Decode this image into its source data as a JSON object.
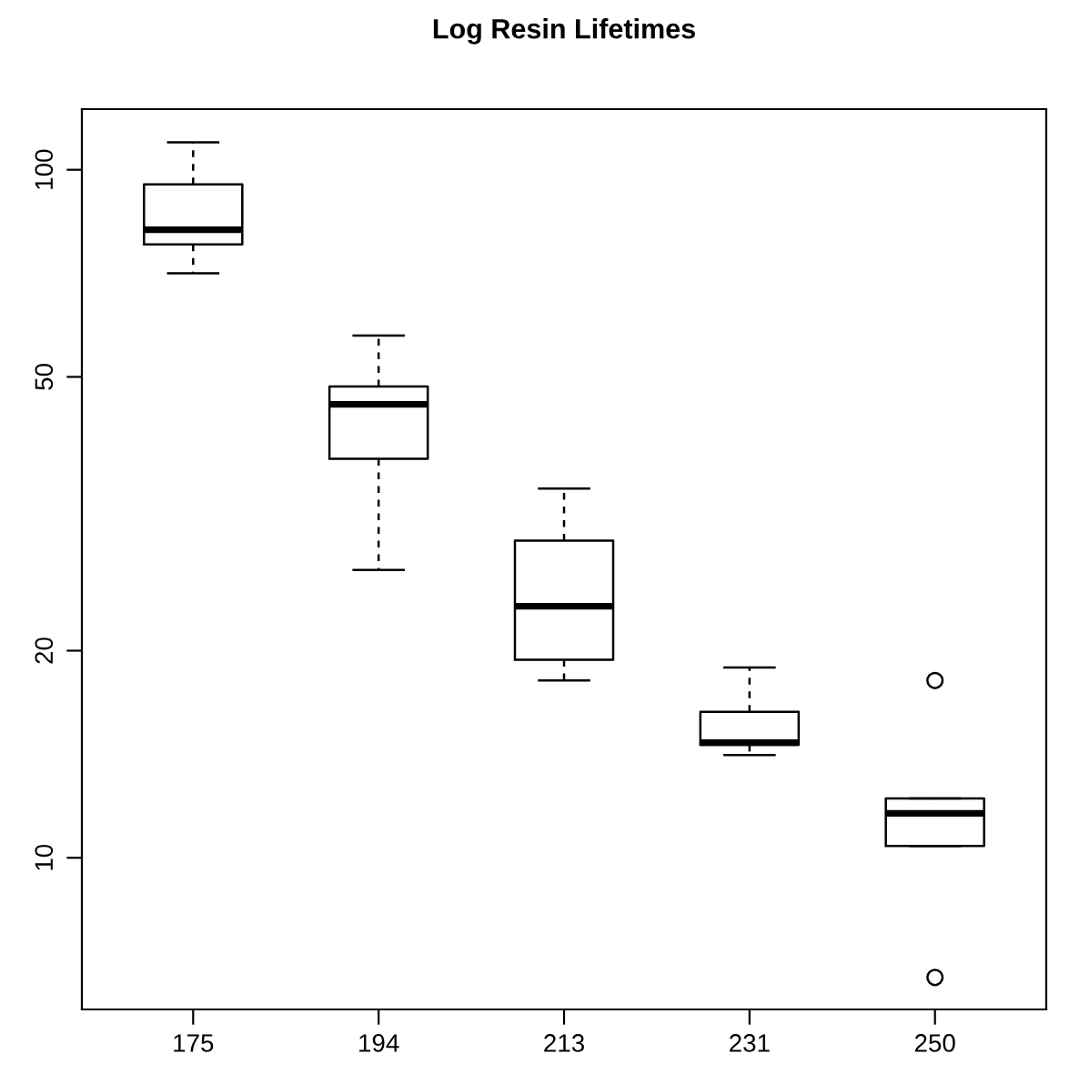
{
  "chart_data": {
    "type": "box",
    "title": "Log Resin Lifetimes",
    "categories": [
      "175",
      "194",
      "213",
      "231",
      "250"
    ],
    "boxes": [
      {
        "low": 70.7,
        "q1": 77.9,
        "median": 81.8,
        "q3": 95.2,
        "high": 109.6
      },
      {
        "low": 26.2,
        "q1": 38.0,
        "median": 45.6,
        "q3": 48.4,
        "high": 57.4
      },
      {
        "low": 18.1,
        "q1": 19.4,
        "median": 23.2,
        "q3": 28.9,
        "high": 34.4
      },
      {
        "low": 14.1,
        "q1": 14.6,
        "median": 14.7,
        "q3": 16.3,
        "high": 18.9
      },
      {
        "low": 10.4,
        "q1": 10.4,
        "median": 11.6,
        "q3": 12.2,
        "high": 12.2,
        "outliers": [
          18.1,
          6.7
        ]
      }
    ],
    "log": true,
    "ylim": [
      6.02,
      122.5
    ],
    "yticks": [
      10,
      20,
      50,
      100
    ],
    "grid": false,
    "line_style": "dashed"
  }
}
